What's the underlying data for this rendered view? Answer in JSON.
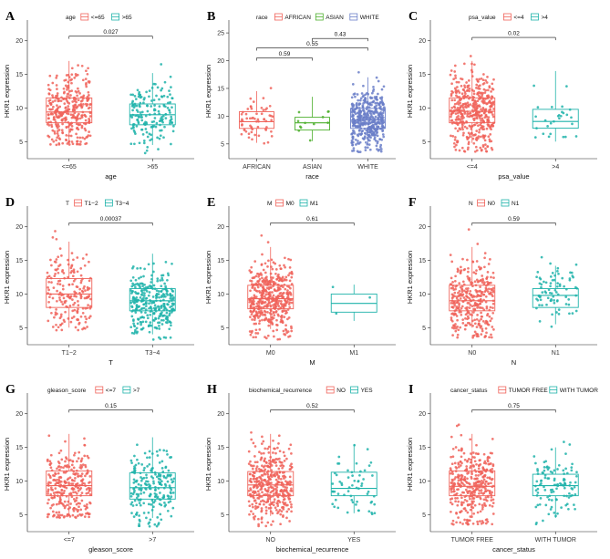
{
  "figure": {
    "type": "boxplot-grid"
  },
  "colors": {
    "red": "#f0635a",
    "teal": "#1fb3aa",
    "green": "#4caf2c",
    "blue": "#6a7ec8",
    "line": "#000000"
  },
  "chart_data": [
    {
      "id": "A",
      "type": "boxplot",
      "legend_title": "age",
      "xlabel": "age",
      "ylabel": "HKR1 expression",
      "categories": [
        "<=65",
        ">65"
      ],
      "colors": [
        "red",
        "teal"
      ],
      "ylim": [
        3,
        22
      ],
      "yticks": [
        5,
        10,
        15,
        20
      ],
      "stats": [
        {
          "min": 4.8,
          "q1": 7.8,
          "median": 9.4,
          "q3": 11.5,
          "max": 17.0,
          "n": 330,
          "lo": 4.5,
          "hi": 19.0
        },
        {
          "min": 4.5,
          "q1": 7.5,
          "median": 9.0,
          "q3": 10.6,
          "max": 15.2,
          "n": 170,
          "lo": 3.2,
          "hi": 20.0
        }
      ],
      "comparisons": [
        {
          "from": 0,
          "to": 1,
          "label": "0.027",
          "y": 20.7
        }
      ]
    },
    {
      "id": "B",
      "type": "boxplot",
      "legend_title": "race",
      "xlabel": "race",
      "ylabel": "HKR1 expression",
      "categories": [
        "AFRICAN",
        "ASIAN",
        "WHITE"
      ],
      "colors": [
        "red",
        "green",
        "blue"
      ],
      "ylim": [
        3,
        26
      ],
      "yticks": [
        5,
        10,
        15,
        20,
        25
      ],
      "stats": [
        {
          "min": 5.2,
          "q1": 7.8,
          "median": 9.0,
          "q3": 10.8,
          "max": 14.5,
          "n": 60,
          "lo": 5.0,
          "hi": 17.5
        },
        {
          "min": 5.5,
          "q1": 7.5,
          "median": 8.8,
          "q3": 9.8,
          "max": 13.5,
          "n": 12,
          "lo": 5.2,
          "hi": 13.5
        },
        {
          "min": 4.8,
          "q1": 7.8,
          "median": 9.3,
          "q3": 11.4,
          "max": 17.0,
          "n": 420,
          "lo": 3.5,
          "hi": 20.0
        }
      ],
      "comparisons": [
        {
          "from": 0,
          "to": 1,
          "label": "0.59",
          "y": 20.5
        },
        {
          "from": 0,
          "to": 2,
          "label": "0.55",
          "y": 22.3
        },
        {
          "from": 1,
          "to": 2,
          "label": "0.43",
          "y": 24.0
        }
      ]
    },
    {
      "id": "C",
      "type": "boxplot",
      "legend_title": "psa_value",
      "xlabel": "psa_value",
      "ylabel": "HKR1 expression",
      "categories": [
        "<=4",
        ">4"
      ],
      "colors": [
        "red",
        "teal"
      ],
      "ylim": [
        3,
        22
      ],
      "yticks": [
        5,
        10,
        15,
        20
      ],
      "stats": [
        {
          "min": 4.8,
          "q1": 7.8,
          "median": 9.5,
          "q3": 11.5,
          "max": 17.0,
          "n": 440,
          "lo": 3.5,
          "hi": 20.0
        },
        {
          "min": 5.0,
          "q1": 7.0,
          "median": 8.0,
          "q3": 9.8,
          "max": 15.5,
          "n": 28,
          "lo": 5.5,
          "hi": 18.0
        }
      ],
      "comparisons": [
        {
          "from": 0,
          "to": 1,
          "label": "0.02",
          "y": 20.5
        }
      ]
    },
    {
      "id": "D",
      "type": "boxplot",
      "legend_title": "T",
      "xlabel": "T",
      "ylabel": "HKR1 expression",
      "categories": [
        "T1−2",
        "T3−4"
      ],
      "colors": [
        "red",
        "teal"
      ],
      "ylim": [
        3,
        22
      ],
      "yticks": [
        5,
        10,
        15,
        20
      ],
      "stats": [
        {
          "min": 5.0,
          "q1": 8.0,
          "median": 10.0,
          "q3": 12.3,
          "max": 17.8,
          "n": 190,
          "lo": 4.5,
          "hi": 20.0
        },
        {
          "min": 4.0,
          "q1": 7.5,
          "median": 9.0,
          "q3": 10.8,
          "max": 16.0,
          "n": 310,
          "lo": 3.2,
          "hi": 19.0
        }
      ],
      "comparisons": [
        {
          "from": 0,
          "to": 1,
          "label": "0.00037",
          "y": 20.6
        }
      ]
    },
    {
      "id": "E",
      "type": "boxplot",
      "legend_title": "M",
      "xlabel": "M",
      "ylabel": "HKR1 expression",
      "categories": [
        "M0",
        "M1"
      ],
      "colors": [
        "red",
        "teal"
      ],
      "ylim": [
        3,
        22
      ],
      "yticks": [
        5,
        10,
        15,
        20
      ],
      "stats": [
        {
          "min": 4.8,
          "q1": 7.8,
          "median": 9.3,
          "q3": 11.3,
          "max": 17.0,
          "n": 470,
          "lo": 3.2,
          "hi": 20.0
        },
        {
          "min": 6.0,
          "q1": 7.3,
          "median": 8.6,
          "q3": 10.0,
          "max": 11.4,
          "n": 3,
          "lo": 6.0,
          "hi": 11.4
        }
      ],
      "comparisons": [
        {
          "from": 0,
          "to": 1,
          "label": "0.61",
          "y": 20.6
        }
      ]
    },
    {
      "id": "F",
      "type": "boxplot",
      "legend_title": "N",
      "xlabel": "N",
      "ylabel": "HKR1 expression",
      "categories": [
        "N0",
        "N1"
      ],
      "colors": [
        "red",
        "teal"
      ],
      "ylim": [
        3,
        22
      ],
      "yticks": [
        5,
        10,
        15,
        20
      ],
      "stats": [
        {
          "min": 5.0,
          "q1": 7.5,
          "median": 9.0,
          "q3": 11.3,
          "max": 17.0,
          "n": 340,
          "lo": 3.5,
          "hi": 20.0
        },
        {
          "min": 5.5,
          "q1": 8.0,
          "median": 9.8,
          "q3": 10.8,
          "max": 14.2,
          "n": 80,
          "lo": 5.0,
          "hi": 16.0
        }
      ],
      "comparisons": [
        {
          "from": 0,
          "to": 1,
          "label": "0.59",
          "y": 20.6
        }
      ]
    },
    {
      "id": "G",
      "type": "boxplot",
      "legend_title": "gleason_score",
      "xlabel": "gleason_score",
      "ylabel": "HKR1 expression",
      "categories": [
        "<=7",
        ">7"
      ],
      "colors": [
        "red",
        "teal"
      ],
      "ylim": [
        3,
        22
      ],
      "yticks": [
        5,
        10,
        15,
        20
      ],
      "stats": [
        {
          "min": 4.8,
          "q1": 7.8,
          "median": 9.3,
          "q3": 11.5,
          "max": 17.0,
          "n": 290,
          "lo": 4.5,
          "hi": 19.0
        },
        {
          "min": 4.5,
          "q1": 7.3,
          "median": 9.0,
          "q3": 11.2,
          "max": 16.5,
          "n": 210,
          "lo": 3.2,
          "hi": 20.0
        }
      ],
      "comparisons": [
        {
          "from": 0,
          "to": 1,
          "label": "0.15",
          "y": 20.6
        }
      ]
    },
    {
      "id": "H",
      "type": "boxplot",
      "legend_title": "biochemical_recurrence",
      "xlabel": "biochemical_recurrence",
      "ylabel": "HKR1 expression",
      "categories": [
        "NO",
        "YES"
      ],
      "colors": [
        "red",
        "teal"
      ],
      "ylim": [
        3,
        22
      ],
      "yticks": [
        5,
        10,
        15,
        20
      ],
      "stats": [
        {
          "min": 4.8,
          "q1": 7.8,
          "median": 9.4,
          "q3": 11.4,
          "max": 17.0,
          "n": 400,
          "lo": 3.2,
          "hi": 20.0
        },
        {
          "min": 5.2,
          "q1": 7.8,
          "median": 8.9,
          "q3": 11.3,
          "max": 15.5,
          "n": 60,
          "lo": 5.0,
          "hi": 19.0
        }
      ],
      "comparisons": [
        {
          "from": 0,
          "to": 1,
          "label": "0.52",
          "y": 20.6
        }
      ]
    },
    {
      "id": "I",
      "type": "boxplot",
      "legend_title": "cancer_status",
      "xlabel": "cancer_status",
      "ylabel": "HKR1 expression",
      "categories": [
        "TUMOR FREE",
        "WITH TUMOR"
      ],
      "colors": [
        "red",
        "teal"
      ],
      "ylim": [
        3,
        22
      ],
      "yticks": [
        5,
        10,
        15,
        20
      ],
      "stats": [
        {
          "min": 4.8,
          "q1": 7.8,
          "median": 9.2,
          "q3": 11.5,
          "max": 17.0,
          "n": 360,
          "lo": 3.5,
          "hi": 20.0
        },
        {
          "min": 4.5,
          "q1": 7.8,
          "median": 9.3,
          "q3": 11.0,
          "max": 15.0,
          "n": 110,
          "lo": 3.2,
          "hi": 19.0
        }
      ],
      "comparisons": [
        {
          "from": 0,
          "to": 1,
          "label": "0.75",
          "y": 20.6
        }
      ]
    }
  ]
}
